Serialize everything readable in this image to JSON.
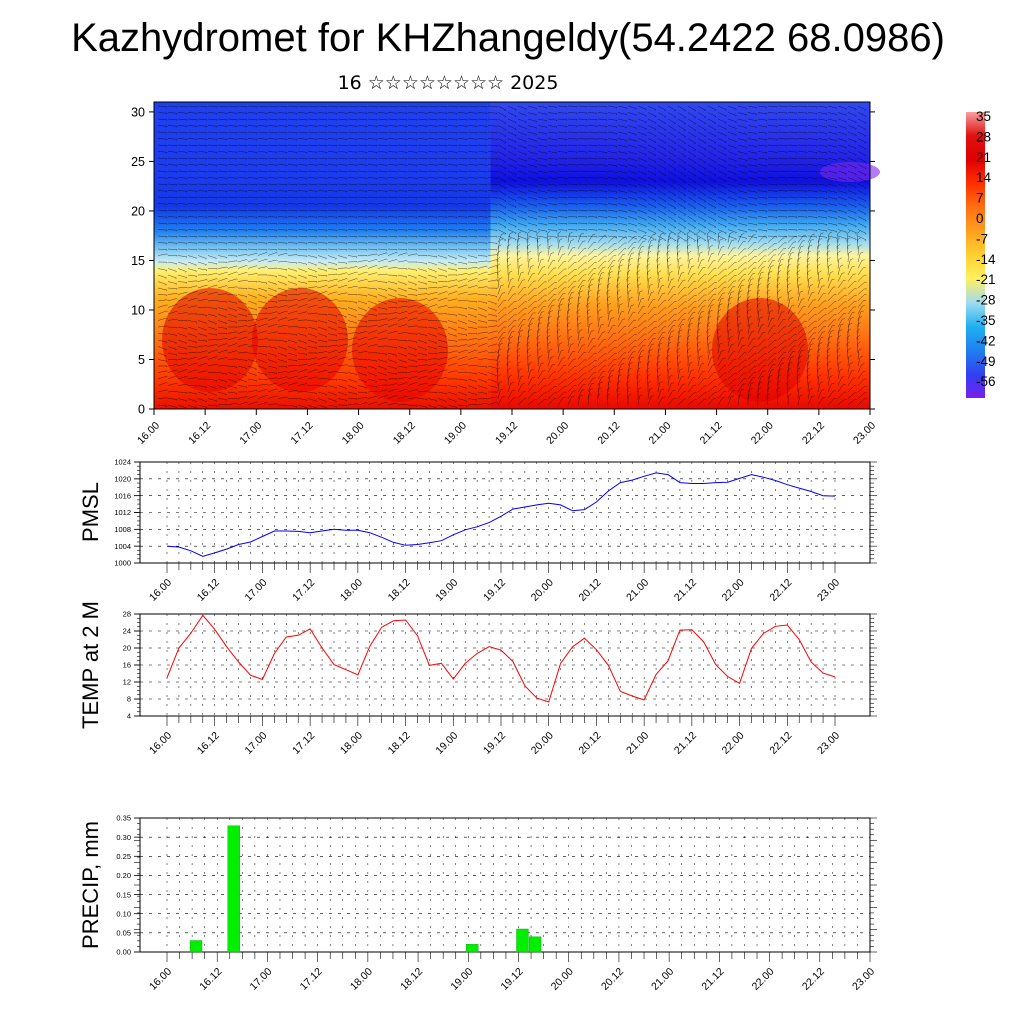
{
  "header": {
    "title": "Kazhydromet for KHZhangeldy(54.2422 68.0986)",
    "subtitle": "16 ☆☆☆☆☆☆☆☆ 2025"
  },
  "colors": {
    "pmsl_line": "#0000ff",
    "temp_line": "#ff0000",
    "precip_bar": "#00ee00",
    "colorbar": [
      "#7a1fef",
      "#3040f0",
      "#2080f0",
      "#20b0f0",
      "#a0dcf0",
      "#fff060",
      "#ffd030",
      "#ffa020",
      "#ff7010",
      "#ff3000",
      "#e00000",
      "#f8a0a0"
    ]
  },
  "chart_data": [
    {
      "name": "cross-section",
      "type": "heatmap",
      "x_ticks": [
        "16.00",
        "16.12",
        "17.00",
        "17.12",
        "18.00",
        "18.12",
        "19.00",
        "19.12",
        "20.00",
        "20.12",
        "21.00",
        "21.12",
        "22.00",
        "22.12",
        "23.00"
      ],
      "y_ticks": [
        "0",
        "5",
        "10",
        "15",
        "20",
        "25",
        "30"
      ],
      "ylim": [
        0,
        31
      ],
      "colorbar_labels": [
        "35",
        "28",
        "21",
        "14",
        "7",
        "0",
        "-7",
        "-14",
        "-21",
        "-28",
        "-35",
        "-42",
        "-49",
        "-56"
      ]
    },
    {
      "name": "pmsl",
      "type": "line",
      "ylabel": "PMSL",
      "ylim": [
        1000,
        1024
      ],
      "y_ticks": [
        "1000",
        "1004",
        "1008",
        "1012",
        "1016",
        "1020",
        "1024"
      ],
      "x_ticks": [
        "16.00",
        "16.12",
        "17.00",
        "17.12",
        "18.00",
        "18.12",
        "19.00",
        "19.12",
        "20.00",
        "20.12",
        "21.00",
        "21.12",
        "22.00",
        "22.12",
        "23.00"
      ],
      "x": [
        0,
        3,
        6,
        9,
        12,
        15,
        18,
        21,
        24,
        27,
        30,
        33,
        36,
        39,
        42,
        45,
        48,
        51,
        54,
        57,
        60,
        63,
        66,
        69,
        72,
        75,
        78,
        81,
        84,
        87,
        90,
        93,
        96,
        99,
        102,
        105,
        108,
        111,
        114,
        117,
        120,
        123,
        126,
        129,
        132,
        135,
        138,
        141,
        144,
        147,
        150,
        153,
        156,
        159,
        162,
        165,
        168
      ],
      "values": [
        1004.0,
        1003.8,
        1002.9,
        1001.6,
        1002.4,
        1003.3,
        1004.4,
        1005.0,
        1006.3,
        1007.6,
        1007.6,
        1007.5,
        1007.2,
        1007.6,
        1008.0,
        1007.8,
        1007.8,
        1007.2,
        1006.1,
        1004.9,
        1004.2,
        1004.4,
        1004.8,
        1005.3,
        1006.7,
        1007.9,
        1008.6,
        1009.6,
        1011.1,
        1012.8,
        1013.3,
        1013.8,
        1014.2,
        1013.8,
        1012.4,
        1012.7,
        1014.5,
        1017.1,
        1019.1,
        1019.7,
        1020.6,
        1021.4,
        1021.0,
        1019.1,
        1018.9,
        1018.9,
        1019.1,
        1019.2,
        1020.1,
        1021.0,
        1020.4,
        1019.6,
        1018.6,
        1017.8,
        1017.0,
        1016.0,
        1015.9
      ]
    },
    {
      "name": "temp",
      "type": "line",
      "ylabel": "TEMP at 2 M",
      "ylim": [
        4,
        28
      ],
      "y_ticks": [
        "4",
        "8",
        "12",
        "16",
        "20",
        "24",
        "28"
      ],
      "x_ticks": [
        "16.00",
        "16.12",
        "17.00",
        "17.12",
        "18.00",
        "18.12",
        "19.00",
        "19.12",
        "20.00",
        "20.12",
        "21.00",
        "21.12",
        "22.00",
        "22.12",
        "23.00"
      ],
      "x": [
        0,
        3,
        6,
        9,
        12,
        15,
        18,
        21,
        24,
        27,
        30,
        33,
        36,
        39,
        42,
        45,
        48,
        51,
        54,
        57,
        60,
        63,
        66,
        69,
        72,
        75,
        78,
        81,
        84,
        87,
        90,
        93,
        96,
        99,
        102,
        105,
        108,
        111,
        114,
        117,
        120,
        123,
        126,
        129,
        132,
        135,
        138,
        141,
        144,
        147,
        150,
        153,
        156,
        159,
        162,
        165,
        168
      ],
      "values": [
        13.0,
        20.0,
        23.5,
        27.7,
        24.4,
        20.3,
        16.7,
        13.6,
        12.6,
        18.7,
        22.6,
        23.0,
        24.5,
        20.0,
        16.1,
        14.9,
        13.7,
        20.4,
        24.9,
        26.4,
        26.6,
        22.9,
        15.9,
        16.4,
        12.7,
        16.4,
        18.7,
        20.3,
        19.5,
        16.8,
        11.1,
        8.2,
        7.3,
        16.4,
        20.3,
        22.3,
        19.6,
        15.9,
        9.8,
        8.7,
        7.8,
        13.8,
        17.0,
        24.2,
        24.3,
        21.4,
        16.1,
        13.3,
        11.7,
        19.9,
        23.4,
        25.1,
        25.4,
        22.0,
        16.7,
        14.1,
        13.2
      ]
    },
    {
      "name": "precip",
      "type": "bar",
      "ylabel": "PRECIP, mm",
      "ylim": [
        0,
        0.35
      ],
      "y_ticks": [
        "0.00",
        "0.05",
        "0.10",
        "0.15",
        "0.20",
        "0.25",
        "0.30",
        "0.35"
      ],
      "x_ticks": [
        "16.00",
        "16.12",
        "17.00",
        "17.12",
        "18.00",
        "18.12",
        "19.00",
        "19.12",
        "20.00",
        "20.12",
        "21.00",
        "21.12",
        "22.00",
        "22.12",
        "23.00"
      ],
      "x": [
        0,
        3,
        6,
        9,
        12,
        15,
        18,
        21,
        24,
        27,
        30,
        33,
        36,
        39,
        42,
        45,
        48,
        51,
        54,
        57,
        60,
        63,
        66,
        69,
        72,
        75,
        78,
        81,
        84,
        87,
        90,
        93,
        96,
        99,
        102,
        105,
        108,
        111,
        114,
        117,
        120,
        123,
        126,
        129,
        132,
        135,
        138,
        141,
        144,
        147,
        150,
        153,
        156,
        159,
        162,
        165,
        168
      ],
      "values": [
        0,
        0,
        0.03,
        0,
        0,
        0.33,
        0,
        0,
        0,
        0,
        0,
        0,
        0,
        0,
        0,
        0,
        0,
        0,
        0,
        0,
        0,
        0,
        0,
        0,
        0.02,
        0,
        0,
        0,
        0.06,
        0.04,
        0,
        0,
        0,
        0,
        0,
        0,
        0,
        0,
        0,
        0,
        0,
        0,
        0,
        0,
        0,
        0,
        0,
        0,
        0,
        0,
        0,
        0,
        0,
        0,
        0,
        0,
        0
      ]
    }
  ]
}
